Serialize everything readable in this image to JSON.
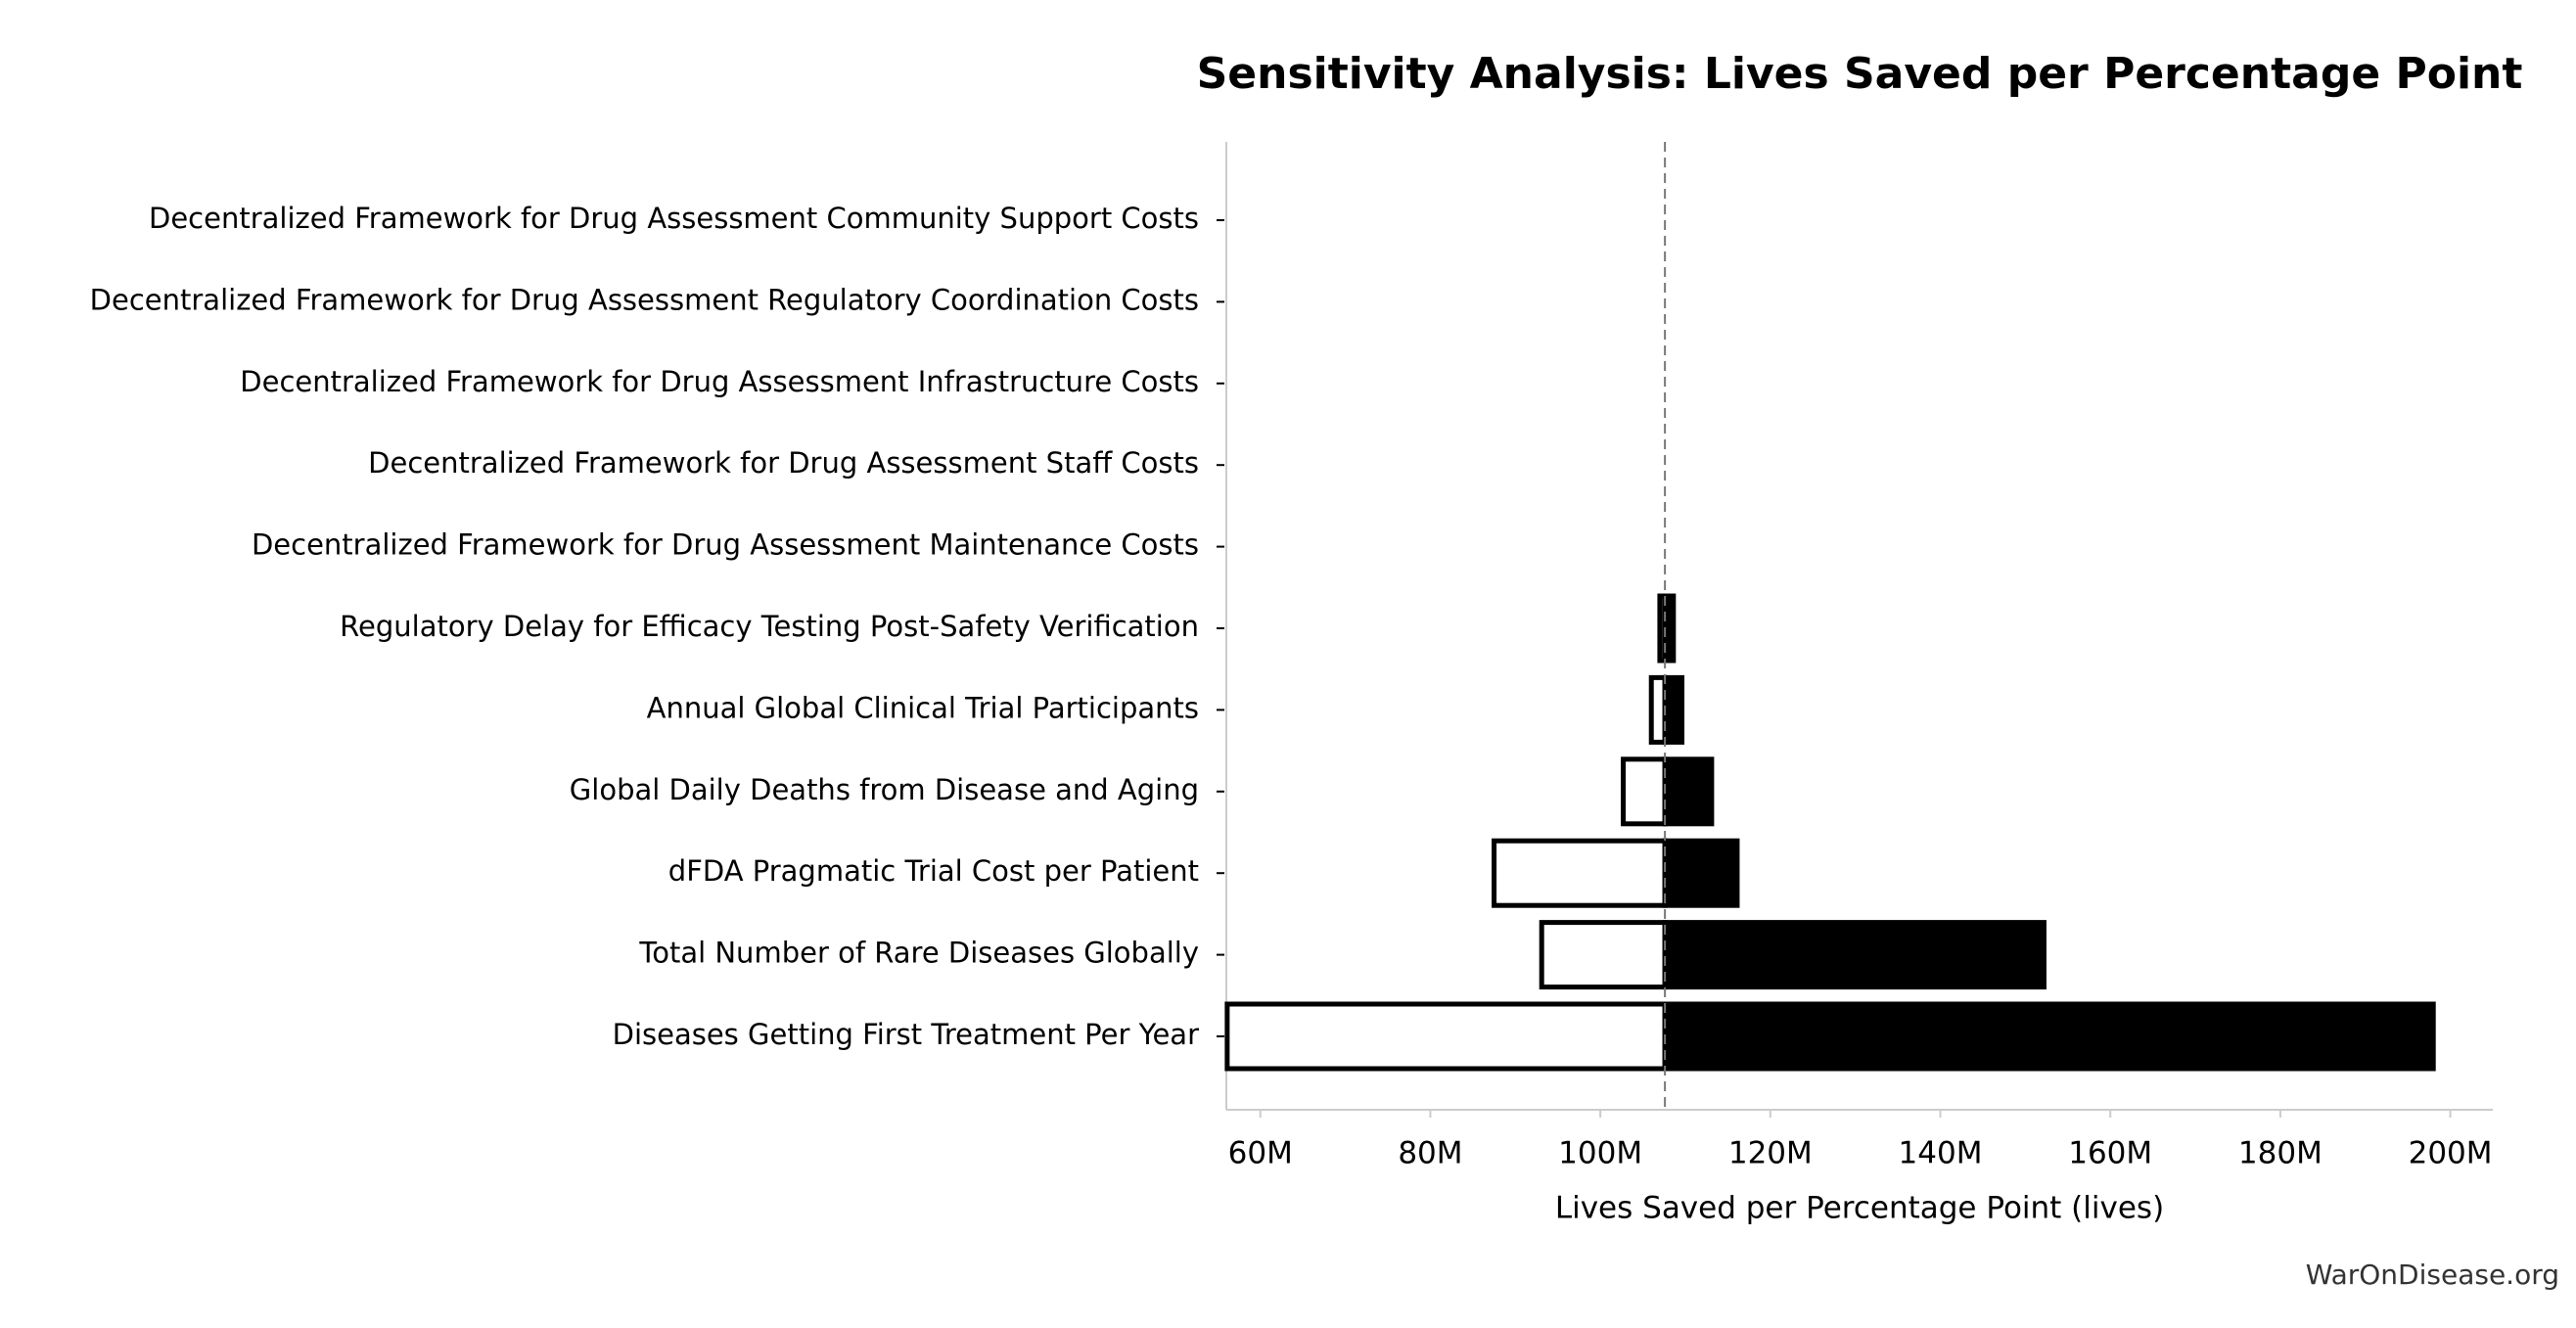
{
  "chart_data": {
    "type": "tornado",
    "title": "Sensitivity Analysis: Lives Saved per Percentage Point",
    "x_label": "Lives Saved per Percentage Point (lives)",
    "source": "WarOnDisease.org",
    "categories": [
      "Decentralized Framework for Drug Assessment Community Support Costs",
      "Decentralized Framework for Drug Assessment Regulatory Coordination Costs",
      "Decentralized Framework for Drug Assessment Infrastructure Costs",
      "Decentralized Framework for Drug Assessment Staff Costs",
      "Decentralized Framework for Drug Assessment Maintenance Costs",
      "Regulatory Delay for Efficacy Testing Post-Safety Verification",
      "Annual Global Clinical Trial Participants",
      "Global Daily Deaths from Disease and Aging",
      "dFDA Pragmatic Trial Cost per Patient",
      "Total Number of Rare Diseases Globally",
      "Diseases Getting First Treatment Per Year"
    ],
    "baseline": 107600000,
    "low": [
      107600000,
      107600000,
      107600000,
      107600000,
      107600000,
      107000000,
      106000000,
      102700000,
      87500000,
      93100000,
      56100000
    ],
    "high": [
      107600000,
      107600000,
      107600000,
      107600000,
      107600000,
      108600000,
      109600000,
      113100000,
      116100000,
      152200000,
      198000000
    ],
    "low_color": "#ffffff",
    "high_color": "#000000",
    "xlim": [
      56000000,
      205000000
    ],
    "xticks": [
      {
        "value": 60000000,
        "label": "60M"
      },
      {
        "value": 80000000,
        "label": "80M"
      },
      {
        "value": 100000000,
        "label": "100M"
      },
      {
        "value": 120000000,
        "label": "120M"
      },
      {
        "value": 140000000,
        "label": "140M"
      },
      {
        "value": 160000000,
        "label": "160M"
      },
      {
        "value": 180000000,
        "label": "180M"
      },
      {
        "value": 200000000,
        "label": "200M"
      }
    ]
  }
}
